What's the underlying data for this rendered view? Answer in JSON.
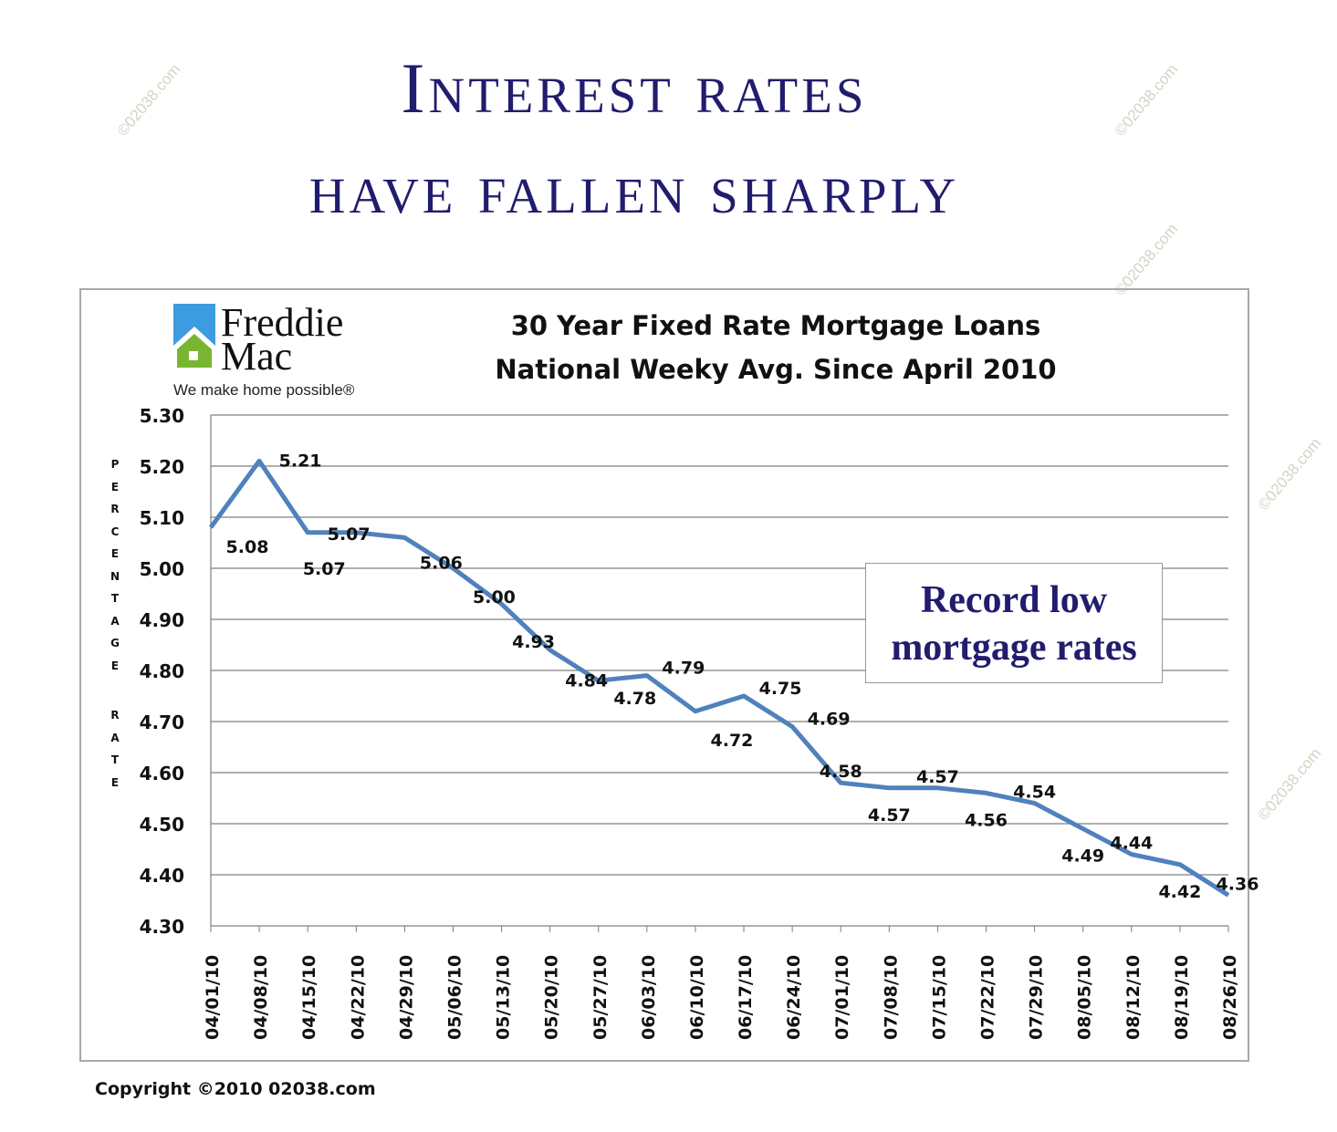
{
  "headline": {
    "line1": "Interest rates",
    "line2": "have fallen sharply"
  },
  "logo": {
    "word1": "Freddie",
    "word2": "Mac",
    "tagline": "We make home possible®"
  },
  "callout": {
    "line1": "Record low",
    "line2": "mortgage rates"
  },
  "copyright": "Copyright ©2010 02038.com",
  "watermark": "©02038.com",
  "colors": {
    "line": "#4f81bd",
    "headline": "#211c6e",
    "grid": "#7f7f7f"
  },
  "chart_data": {
    "type": "line",
    "title": "30 Year Fixed Rate Mortgage Loans",
    "subtitle": "National Weeky Avg. Since April 2010",
    "xlabel": "",
    "ylabel": "PERCENTAGE RATE",
    "ylim": [
      4.3,
      5.3
    ],
    "yticks": [
      "5.30",
      "5.20",
      "5.10",
      "5.00",
      "4.90",
      "4.80",
      "4.70",
      "4.60",
      "4.50",
      "4.40",
      "4.30"
    ],
    "grid": true,
    "categories": [
      "04/01/10",
      "04/08/10",
      "04/15/10",
      "04/22/10",
      "04/29/10",
      "05/06/10",
      "05/13/10",
      "05/20/10",
      "05/27/10",
      "06/03/10",
      "06/10/10",
      "06/17/10",
      "06/24/10",
      "07/01/10",
      "07/08/10",
      "07/15/10",
      "07/22/10",
      "07/29/10",
      "08/05/10",
      "08/12/10",
      "08/19/10",
      "08/26/10"
    ],
    "series": [
      {
        "name": "30 Year Fixed Rate",
        "values": [
          5.08,
          5.21,
          5.07,
          5.07,
          5.06,
          5.0,
          4.93,
          4.84,
          4.78,
          4.79,
          4.72,
          4.75,
          4.69,
          4.58,
          4.57,
          4.57,
          4.56,
          4.54,
          4.49,
          4.44,
          4.42,
          4.36
        ]
      }
    ],
    "data_labels": [
      "5.08",
      "5.21",
      "5.07",
      "5.07",
      "5.06",
      "5.00",
      "4.93",
      "4.84",
      "4.78",
      "4.79",
      "4.72",
      "4.75",
      "4.69",
      "4.58",
      "4.57",
      "4.57",
      "4.56",
      "4.54",
      "4.49",
      "4.44",
      "4.42",
      "4.36"
    ]
  }
}
